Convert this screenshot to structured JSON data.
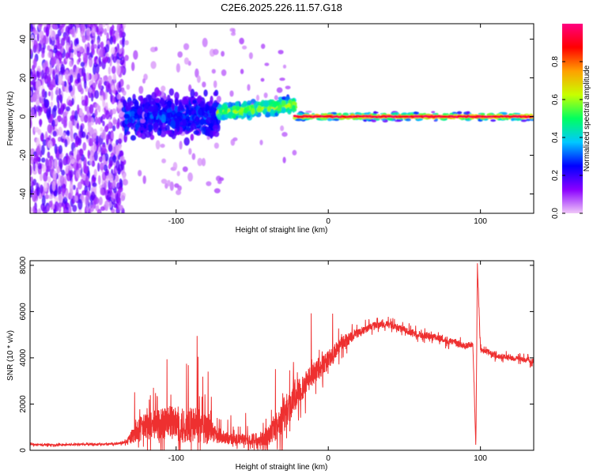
{
  "figure_title": "C2E6.2025.226.11.57.G18",
  "chart_data": [
    {
      "type": "heatmap",
      "title": "C2E6.2025.226.11.57.G18",
      "xlabel": "Height of straight line (km)",
      "ylabel": "Frequency (Hz)",
      "xlim": [
        -196,
        135
      ],
      "ylim": [
        -50,
        48
      ],
      "x_ticks": [
        -100,
        0,
        100
      ],
      "y_ticks": [
        -40,
        -20,
        0,
        20,
        40
      ],
      "colorbar": {
        "label": "Normalized spectral amplitude",
        "range": [
          0.0,
          1.0
        ],
        "ticks": [
          0.0,
          0.2,
          0.4,
          0.6,
          0.8
        ],
        "colors": [
          "#f0c8f8",
          "#8a00ff",
          "#0000ff",
          "#00c8ff",
          "#00ff60",
          "#c8ff00",
          "#ffa000",
          "#ff0000",
          "#ff0080"
        ]
      },
      "regions": [
        {
          "x_range": [
            -196,
            -134
          ],
          "freq_spread_hz": 50,
          "amplitude": 0.1
        },
        {
          "x_range": [
            -134,
            -72
          ],
          "freq_spread_hz": 15,
          "amplitude": 0.2
        },
        {
          "x_range": [
            -72,
            -22
          ],
          "freq_center_hz": 4,
          "freq_spread_hz": 5,
          "amplitude": 0.5
        },
        {
          "x_range": [
            -22,
            135
          ],
          "freq_center_hz": 0,
          "freq_spread_hz": 1,
          "amplitude": 0.95
        }
      ]
    },
    {
      "type": "line",
      "xlabel": "Height of straight line (km)",
      "ylabel": "SNR (10 * v/v)",
      "xlim": [
        -196,
        135
      ],
      "ylim": [
        0,
        8200
      ],
      "x_ticks": [
        -100,
        0,
        100
      ],
      "y_ticks": [
        0,
        2000,
        4000,
        6000,
        8000
      ],
      "line_color": "#ee3030",
      "series": [
        {
          "x": [
            -196,
            -180,
            -160,
            -140,
            -133,
            -125,
            -115,
            -105,
            -95,
            -85,
            -75,
            -65,
            -55,
            -45,
            -38,
            -30,
            -24,
            -20,
            -15,
            -10,
            -5,
            0,
            5,
            10,
            20,
            30,
            40,
            50,
            60,
            70,
            80,
            90,
            95,
            97,
            98,
            100,
            105,
            110,
            120,
            135
          ],
          "values": [
            250,
            230,
            260,
            270,
            350,
            900,
            1100,
            1200,
            1050,
            1100,
            700,
            500,
            450,
            500,
            700,
            1400,
            2100,
            2500,
            2900,
            3300,
            3600,
            3900,
            4300,
            4700,
            5100,
            5400,
            5450,
            5200,
            5000,
            4900,
            4700,
            4500,
            4600,
            100,
            8000,
            4400,
            4250,
            4100,
            4000,
            3850
          ],
          "noise_amplitude": [
            60,
            60,
            60,
            60,
            100,
            900,
            1100,
            1200,
            1300,
            1300,
            700,
            400,
            400,
            500,
            800,
            1300,
            1200,
            1100,
            900,
            800,
            700,
            700,
            600,
            500,
            300,
            250,
            250,
            250,
            250,
            250,
            250,
            250,
            200,
            100,
            200,
            200,
            200,
            200,
            200,
            200
          ]
        }
      ]
    }
  ]
}
